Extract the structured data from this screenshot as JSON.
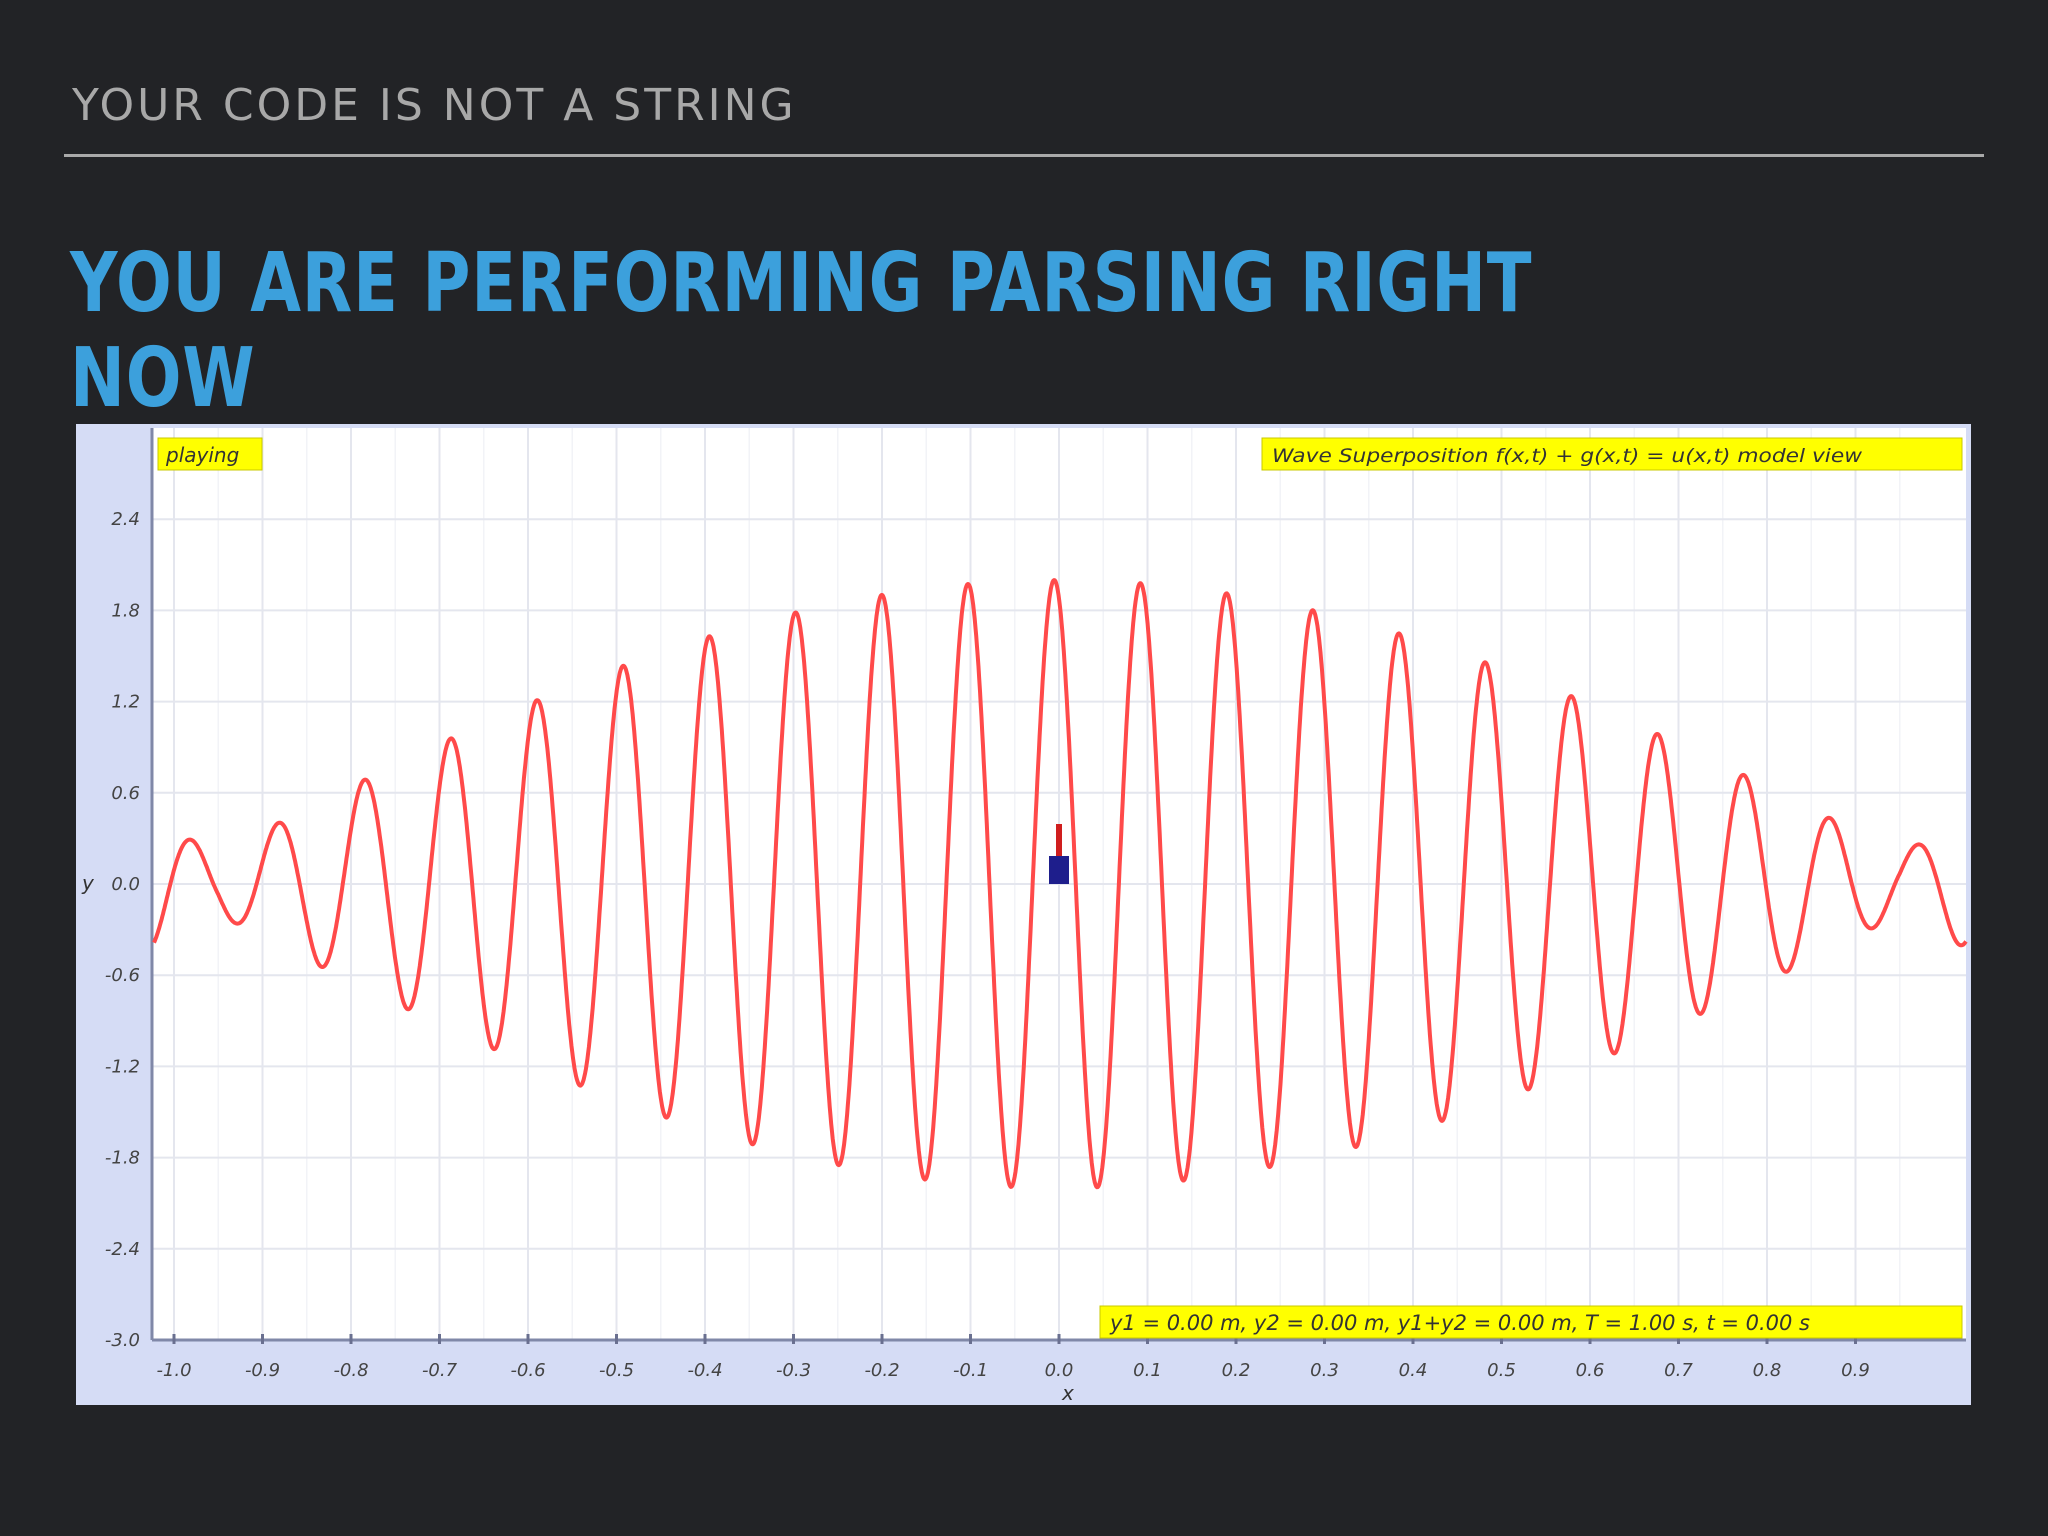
{
  "slide": {
    "section_title": "YOUR CODE IS NOT A STRING",
    "heading": "YOU ARE PERFORMING PARSING RIGHT NOW"
  },
  "colors": {
    "background": "#222326",
    "heading": "#3ca0dc",
    "section_title": "#a8a8a8",
    "plot_bg": "#ffffff",
    "axis_panel": "#d5dcf5",
    "label_bg": "#ffff00",
    "wave": "#ff4a4a",
    "marker": "#1e1e8c",
    "marker_stem": "#d01e1e"
  },
  "chart_data": {
    "type": "line",
    "status_label": "playing",
    "title": "Wave Superposition f(x,t) + g(x,t) = u(x,t) model view",
    "readout": "y1 = 0.00 m, y2 = 0.00 m, y1+y2 = 0.00 m, T = 1.00 s, t = 0.00 s",
    "xlabel": "x",
    "ylabel": "y",
    "xlim": [
      -1.0,
      1.0
    ],
    "ylim": [
      -3.0,
      3.0
    ],
    "x_ticks": [
      "-1.0",
      "-0.9",
      "-0.8",
      "-0.7",
      "-0.6",
      "-0.5",
      "-0.4",
      "-0.3",
      "-0.2",
      "-0.1",
      "0.0",
      "0.1",
      "0.2",
      "0.3",
      "0.4",
      "0.5",
      "0.6",
      "0.7",
      "0.8",
      "0.9"
    ],
    "y_ticks": [
      "2.4",
      "1.8",
      "1.2",
      "0.6",
      "0.0",
      "-0.6",
      "-1.2",
      "-1.8",
      "-2.4",
      "-3.0"
    ],
    "grid": true,
    "series": [
      {
        "wave1": {
          "amplitude": 1.0,
          "wavelength": 0.1
        },
        "wave2": {
          "amplitude": 1.0,
          "wavelength": 0.095
        },
        "envelope_peak": 2.0
      }
    ],
    "marker": {
      "x": 0.0,
      "y": 0.0
    }
  }
}
